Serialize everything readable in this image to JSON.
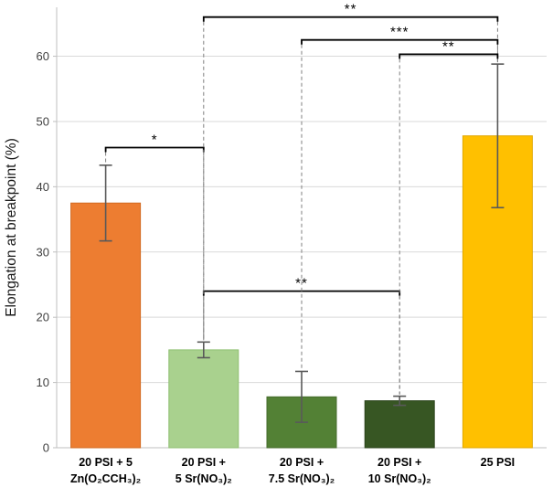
{
  "chart_data": {
    "type": "bar",
    "title": "",
    "xlabel": "",
    "ylabel": "Elongation at breakpoint (%)",
    "ylim": [
      0,
      67.5
    ],
    "yticks": [
      0,
      10,
      20,
      30,
      40,
      50,
      60
    ],
    "grid": true,
    "legend": false,
    "categories": [
      {
        "line1": "20 PSI + 5",
        "line2": "Zn(O₂CCH₃)₂"
      },
      {
        "line1": "20 PSI +",
        "line2": "5 Sr(NO₃)₂"
      },
      {
        "line1": "20 PSI +",
        "line2": "7.5 Sr(NO₃)₂"
      },
      {
        "line1": "20 PSI +",
        "line2": "10 Sr(NO₃)₂"
      },
      {
        "line1": "25 PSI",
        "line2": ""
      }
    ],
    "values": [
      37.5,
      15.0,
      7.8,
      7.2,
      47.8
    ],
    "errors": [
      5.8,
      1.2,
      3.9,
      0.7,
      11.0
    ],
    "bar_colors": [
      "#ED7D31",
      "#A9D18E",
      "#538135",
      "#375623",
      "#FFC000"
    ],
    "bar_border_colors": [
      "#D26A22",
      "#8FBF72",
      "#446B2B",
      "#2B431B",
      "#E0A800"
    ],
    "error_bar_color": "#595959",
    "gridline_color": "#D9D9D9",
    "axis_color": "#BFBFBF",
    "bracket_color": "#000000",
    "drop_line_color": "#7F7F7F",
    "significance_brackets": [
      {
        "from": 0,
        "to": 1,
        "height": 46.0,
        "label": "*"
      },
      {
        "from": 1,
        "to": 3,
        "height": 24.0,
        "label": "**"
      },
      {
        "from": 1,
        "to": 4,
        "height": 66.0,
        "label": "**"
      },
      {
        "from": 2,
        "to": 4,
        "height": 62.5,
        "label": "***"
      },
      {
        "from": 3,
        "to": 4,
        "height": 60.3,
        "label": "**"
      }
    ]
  }
}
